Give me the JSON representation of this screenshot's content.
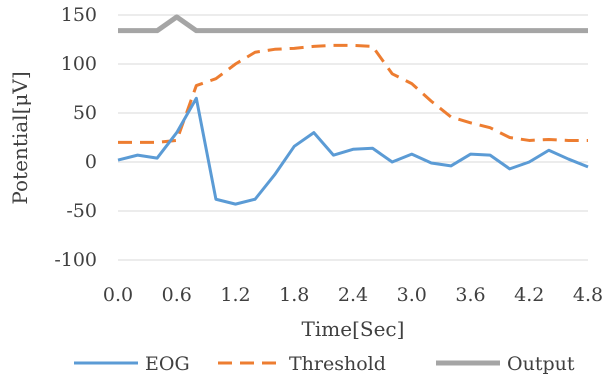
{
  "chart_data": {
    "type": "line",
    "xlabel": "Time[Sec]",
    "ylabel": "Potential[μV]",
    "x": [
      0.0,
      0.2,
      0.4,
      0.6,
      0.8,
      1.0,
      1.2,
      1.4,
      1.6,
      1.8,
      2.0,
      2.2,
      2.4,
      2.6,
      2.8,
      3.0,
      3.2,
      3.4,
      3.6,
      3.8,
      4.0,
      4.2,
      4.4,
      4.6,
      4.8
    ],
    "x_ticks": [
      "0.0",
      "0.6",
      "1.2",
      "1.8",
      "2.4",
      "3.0",
      "3.6",
      "4.2",
      "4.8"
    ],
    "ylim": [
      -100,
      150
    ],
    "y_ticks": [
      "-100",
      "-50",
      "0",
      "50",
      "100",
      "150"
    ],
    "grid": true,
    "legend_position": "bottom",
    "series": [
      {
        "name": "EOG",
        "color": "#5b9bd5",
        "style": "solid",
        "values": [
          2,
          7,
          4,
          30,
          65,
          -38,
          -43,
          -38,
          -13,
          16,
          30,
          7,
          13,
          14,
          0,
          8,
          -1,
          -4,
          8,
          7,
          -7,
          0,
          12,
          3,
          -5
        ]
      },
      {
        "name": "Threshold",
        "color": "#ed7d31",
        "style": "dashed",
        "values": [
          20,
          20,
          20,
          22,
          78,
          85,
          100,
          112,
          115,
          116,
          118,
          119,
          119,
          118,
          90,
          80,
          62,
          46,
          40,
          35,
          25,
          22,
          23,
          22,
          22
        ]
      },
      {
        "name": "Output",
        "color": "#a5a5a5",
        "style": "solid",
        "values": [
          134,
          134,
          134,
          148,
          134,
          134,
          134,
          134,
          134,
          134,
          134,
          134,
          134,
          134,
          134,
          134,
          134,
          134,
          134,
          134,
          134,
          134,
          134,
          134,
          134
        ]
      }
    ]
  }
}
